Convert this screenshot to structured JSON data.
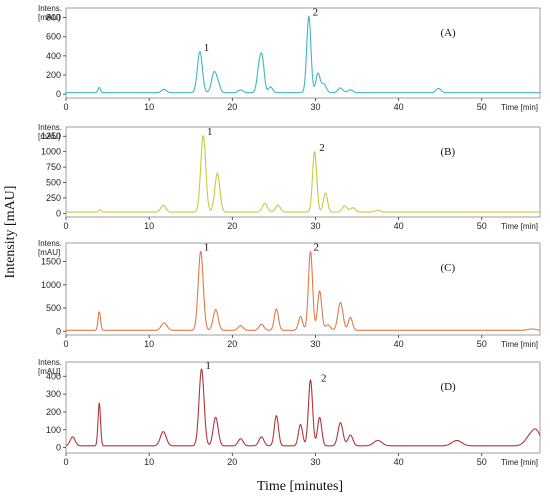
{
  "figure": {
    "ylabel": "Intensity [mAU]",
    "xlabel": "Time [minutes]"
  },
  "chart_data": [
    {
      "type": "line",
      "panel": "(A)",
      "y_axis_label": "Intens.\n[mAU]",
      "x_axis_label": "Time [min]",
      "color": "#3fb6c4",
      "xlim": [
        0,
        57
      ],
      "ylim": [
        -40,
        900
      ],
      "x_ticks": [
        0,
        10,
        20,
        30,
        40,
        50
      ],
      "y_ticks": [
        0,
        200,
        400,
        600,
        800
      ],
      "grid": false,
      "baseline": 15,
      "peak_labels": [
        {
          "text": "1",
          "x": 16.2,
          "y": 430
        },
        {
          "text": "2",
          "x": 29.3,
          "y": 800
        }
      ],
      "peaks": [
        {
          "rt": 4.0,
          "height": 55,
          "width": 0.15
        },
        {
          "rt": 11.8,
          "height": 35,
          "width": 0.3
        },
        {
          "rt": 16.1,
          "height": 430,
          "width": 0.3
        },
        {
          "rt": 17.8,
          "height": 210,
          "width": 0.3
        },
        {
          "rt": 18.3,
          "height": 80,
          "width": 0.25
        },
        {
          "rt": 21.0,
          "height": 30,
          "width": 0.3
        },
        {
          "rt": 23.2,
          "height": 230,
          "width": 0.25
        },
        {
          "rt": 23.6,
          "height": 330,
          "width": 0.25
        },
        {
          "rt": 24.6,
          "height": 60,
          "width": 0.25
        },
        {
          "rt": 29.2,
          "height": 800,
          "width": 0.25
        },
        {
          "rt": 30.3,
          "height": 200,
          "width": 0.25
        },
        {
          "rt": 31.0,
          "height": 90,
          "width": 0.3
        },
        {
          "rt": 33.0,
          "height": 50,
          "width": 0.3
        },
        {
          "rt": 34.2,
          "height": 30,
          "width": 0.3
        },
        {
          "rt": 44.8,
          "height": 45,
          "width": 0.3
        }
      ]
    },
    {
      "type": "line",
      "panel": "(B)",
      "y_axis_label": "Intens.\n[mAU]",
      "x_axis_label": "Time [min]",
      "color": "#c5cc3f",
      "xlim": [
        0,
        57
      ],
      "ylim": [
        -60,
        1400
      ],
      "x_ticks": [
        0,
        10,
        20,
        30,
        40,
        50
      ],
      "y_ticks": [
        0,
        250,
        500,
        750,
        1000,
        1250
      ],
      "grid": false,
      "baseline": 20,
      "peak_labels": [
        {
          "text": "1",
          "x": 16.6,
          "y": 1240
        },
        {
          "text": "2",
          "x": 30.1,
          "y": 980
        }
      ],
      "peaks": [
        {
          "rt": 4.1,
          "height": 40,
          "width": 0.15
        },
        {
          "rt": 11.7,
          "height": 110,
          "width": 0.3
        },
        {
          "rt": 16.5,
          "height": 1240,
          "width": 0.3
        },
        {
          "rt": 18.2,
          "height": 630,
          "width": 0.3
        },
        {
          "rt": 23.9,
          "height": 140,
          "width": 0.3
        },
        {
          "rt": 25.5,
          "height": 110,
          "width": 0.3
        },
        {
          "rt": 29.9,
          "height": 980,
          "width": 0.25
        },
        {
          "rt": 31.2,
          "height": 310,
          "width": 0.25
        },
        {
          "rt": 33.5,
          "height": 100,
          "width": 0.3
        },
        {
          "rt": 34.5,
          "height": 70,
          "width": 0.3
        },
        {
          "rt": 37.5,
          "height": 30,
          "width": 0.3
        }
      ]
    },
    {
      "type": "line",
      "panel": "(C)",
      "y_axis_label": "Intens.\n[mAU]",
      "x_axis_label": "Time [min]",
      "color": "#e07a4c",
      "xlim": [
        0,
        57
      ],
      "ylim": [
        -80,
        1900
      ],
      "x_ticks": [
        0,
        10,
        20,
        30,
        40,
        50
      ],
      "y_ticks": [
        0,
        500,
        1000,
        1500
      ],
      "grid": false,
      "baseline": 20,
      "peak_labels": [
        {
          "text": "1",
          "x": 16.2,
          "y": 1700
        },
        {
          "text": "2",
          "x": 29.4,
          "y": 1700
        }
      ],
      "peaks": [
        {
          "rt": 4.0,
          "height": 400,
          "width": 0.15
        },
        {
          "rt": 11.8,
          "height": 160,
          "width": 0.35
        },
        {
          "rt": 16.2,
          "height": 1700,
          "width": 0.3
        },
        {
          "rt": 18.0,
          "height": 450,
          "width": 0.3
        },
        {
          "rt": 21.0,
          "height": 100,
          "width": 0.3
        },
        {
          "rt": 23.5,
          "height": 130,
          "width": 0.3
        },
        {
          "rt": 25.3,
          "height": 460,
          "width": 0.25
        },
        {
          "rt": 28.2,
          "height": 300,
          "width": 0.25
        },
        {
          "rt": 29.4,
          "height": 1700,
          "width": 0.25
        },
        {
          "rt": 30.5,
          "height": 850,
          "width": 0.25
        },
        {
          "rt": 31.5,
          "height": 120,
          "width": 0.3
        },
        {
          "rt": 33.0,
          "height": 600,
          "width": 0.3
        },
        {
          "rt": 34.2,
          "height": 280,
          "width": 0.25
        },
        {
          "rt": 56.0,
          "height": 30,
          "width": 0.5
        }
      ]
    },
    {
      "type": "line",
      "panel": "(D)",
      "y_axis_label": "Intens.\n[mAU]",
      "x_axis_label": "Time [min]",
      "color": "#b2353b",
      "xlim": [
        0,
        57
      ],
      "ylim": [
        -30,
        480
      ],
      "x_ticks": [
        0,
        10,
        20,
        30,
        40,
        50
      ],
      "y_ticks": [
        0,
        100,
        200,
        300,
        400
      ],
      "grid": false,
      "baseline": 10,
      "peak_labels": [
        {
          "text": "1",
          "x": 16.4,
          "y": 430
        },
        {
          "text": "2",
          "x": 30.3,
          "y": 360
        }
      ],
      "peaks": [
        {
          "rt": 0.8,
          "height": 50,
          "width": 0.3
        },
        {
          "rt": 4.0,
          "height": 240,
          "width": 0.15
        },
        {
          "rt": 11.7,
          "height": 80,
          "width": 0.35
        },
        {
          "rt": 16.3,
          "height": 430,
          "width": 0.3
        },
        {
          "rt": 18.0,
          "height": 160,
          "width": 0.3
        },
        {
          "rt": 21.0,
          "height": 40,
          "width": 0.3
        },
        {
          "rt": 23.5,
          "height": 50,
          "width": 0.3
        },
        {
          "rt": 25.3,
          "height": 170,
          "width": 0.25
        },
        {
          "rt": 28.2,
          "height": 120,
          "width": 0.25
        },
        {
          "rt": 29.4,
          "height": 370,
          "width": 0.25
        },
        {
          "rt": 30.5,
          "height": 160,
          "width": 0.25
        },
        {
          "rt": 33.0,
          "height": 130,
          "width": 0.3
        },
        {
          "rt": 34.2,
          "height": 60,
          "width": 0.3
        },
        {
          "rt": 37.5,
          "height": 30,
          "width": 0.5
        },
        {
          "rt": 47.0,
          "height": 30,
          "width": 0.6
        },
        {
          "rt": 55.8,
          "height": 50,
          "width": 0.6
        },
        {
          "rt": 56.6,
          "height": 70,
          "width": 0.5
        }
      ]
    }
  ]
}
